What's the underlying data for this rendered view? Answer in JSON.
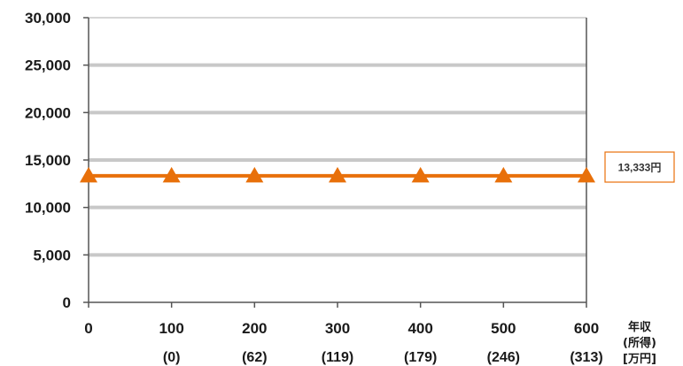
{
  "chart_data": {
    "type": "line",
    "x": [
      0,
      100,
      200,
      300,
      400,
      500,
      600
    ],
    "x_tick_labels": [
      "0",
      "100",
      "200",
      "300",
      "400",
      "500",
      "600"
    ],
    "x_sub_labels": [
      "",
      "(0)",
      "(62)",
      "(119)",
      "(179)",
      "(246)",
      "(313)"
    ],
    "xlabel_lines": [
      "年収",
      "(所得)",
      "[万円]"
    ],
    "y_tick_labels": [
      "0",
      "5,000",
      "10,000",
      "15,000",
      "20,000",
      "25,000",
      "30,000"
    ],
    "ylim": [
      0,
      30000
    ],
    "grid": true,
    "series": [
      {
        "values": [
          13333,
          13333,
          13333,
          13333,
          13333,
          13333,
          13333
        ],
        "color": "#E8700A",
        "marker": "triangle"
      }
    ],
    "callout": {
      "text": "13,333円",
      "border_color": "#E8700A"
    },
    "colors": {
      "gridline": "#c8c8c8",
      "axis": "#555555"
    }
  }
}
